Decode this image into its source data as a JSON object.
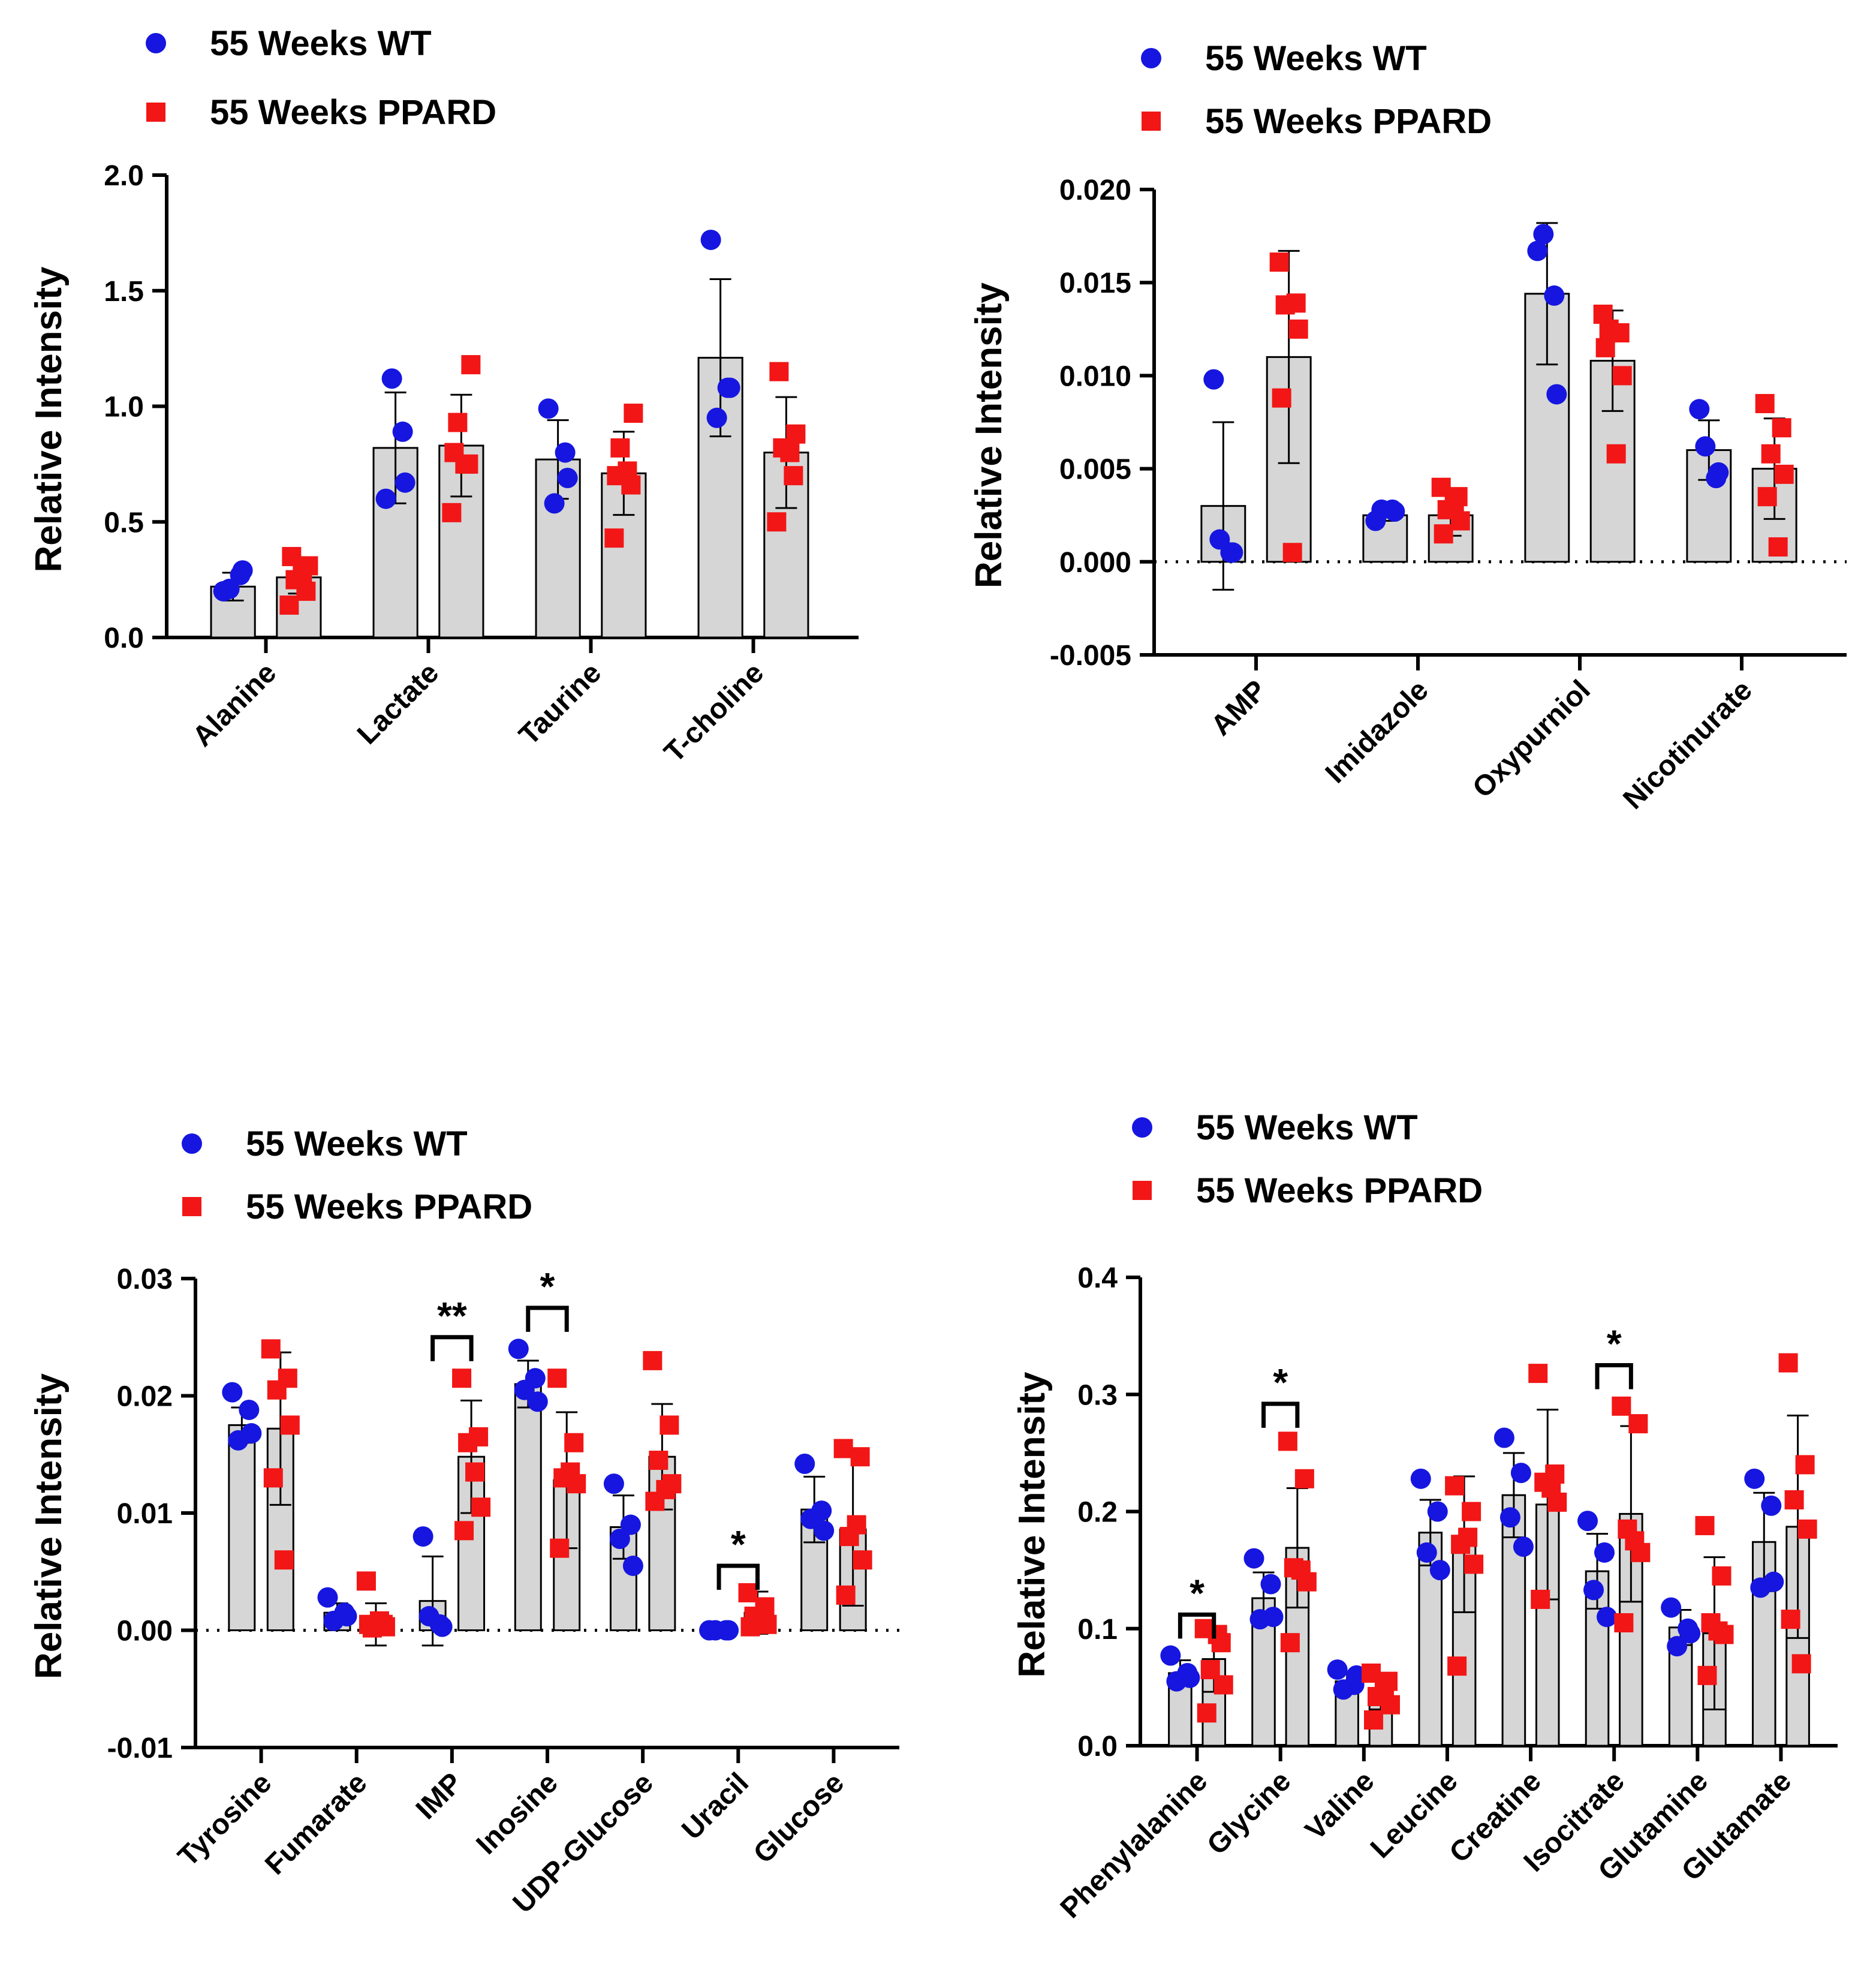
{
  "colors": {
    "wt": "#1616e0",
    "ppard": "#f21616",
    "bar_fill": "#d6d6d6",
    "axis": "#000000"
  },
  "chart_data": [
    {
      "type": "bar",
      "ylabel": "Relative Intensity",
      "ylim": [
        0,
        2.0
      ],
      "yticks": [
        "0.0",
        "0.5",
        "1.0",
        "1.5",
        "2.0"
      ],
      "zero_dotted": false,
      "legend": [
        "55 Weeks WT",
        "55 Weeks PPARD"
      ],
      "categories": [
        "Alanine",
        "Lactate",
        "Taurine",
        "T-choline"
      ],
      "series": [
        {
          "name": "55 Weeks WT",
          "values": [
            0.22,
            0.82,
            0.77,
            1.21
          ],
          "errors": [
            0.06,
            0.24,
            0.17,
            0.34
          ],
          "points": [
            [
              0.2,
              0.27,
              0.21,
              0.29
            ],
            [
              0.6,
              0.89,
              1.12,
              0.67
            ],
            [
              0.99,
              0.8,
              0.58,
              0.69
            ],
            [
              1.72,
              1.08,
              0.95,
              1.08
            ]
          ]
        },
        {
          "name": "55 Weeks PPARD",
          "values": [
            0.26,
            0.83,
            0.71,
            0.8
          ],
          "errors": [
            0.07,
            0.22,
            0.18,
            0.24
          ],
          "points": [
            [
              0.14,
              0.2,
              0.25,
              0.31,
              0.35,
              0.28
            ],
            [
              0.54,
              0.75,
              0.93,
              1.18,
              0.8,
              0.75
            ],
            [
              0.43,
              0.66,
              0.82,
              0.97,
              0.7,
              0.72
            ],
            [
              0.5,
              0.7,
              0.82,
              0.88,
              1.15,
              0.8
            ]
          ]
        }
      ],
      "significance": []
    },
    {
      "type": "bar",
      "ylabel": "Relative Intensity",
      "ylim": [
        -0.005,
        0.02
      ],
      "yticks": [
        "-0.005",
        "0.000",
        "0.005",
        "0.010",
        "0.015",
        "0.020"
      ],
      "zero_dotted": true,
      "legend": [
        "55 Weeks WT",
        "55 Weeks PPARD"
      ],
      "categories": [
        "AMP",
        "Imidazole",
        "Oxypurniol",
        "Nicotinurate"
      ],
      "series": [
        {
          "name": "55 Weeks WT",
          "values": [
            0.003,
            0.0025,
            0.0144,
            0.006
          ],
          "errors": [
            0.0045,
            0.0003,
            0.0038,
            0.0016
          ],
          "points": [
            [
              0.0098,
              0.0005,
              0.0012,
              0.0005
            ],
            [
              0.0022,
              0.0028,
              0.0028,
              0.0027
            ],
            [
              0.0167,
              0.0143,
              0.0176,
              0.009
            ],
            [
              0.0082,
              0.0045,
              0.0062,
              0.0048
            ]
          ]
        },
        {
          "name": "55 Weeks PPARD",
          "values": [
            0.011,
            0.0025,
            0.0108,
            0.005
          ],
          "errors": [
            0.0057,
            0.0011,
            0.0027,
            0.0027
          ],
          "points": [
            [
              0.0161,
              0.0139,
              0.0138,
              0.0125,
              0.0088,
              0.0005
            ],
            [
              0.004,
              0.0035,
              0.0028,
              0.0022,
              0.0015,
              0.003
            ],
            [
              0.0133,
              0.0123,
              0.0125,
              0.01,
              0.0115,
              0.0058
            ],
            [
              0.0085,
              0.0072,
              0.0058,
              0.0047,
              0.0035,
              0.0008
            ]
          ]
        }
      ],
      "significance": []
    },
    {
      "type": "bar",
      "ylabel": "Relative Intensity",
      "ylim": [
        -0.01,
        0.03
      ],
      "yticks": [
        "-0.01",
        "0.00",
        "0.01",
        "0.02",
        "0.03"
      ],
      "zero_dotted": true,
      "legend": [
        "55 Weeks WT",
        "55 Weeks PPARD"
      ],
      "categories": [
        "Tyrosine",
        "Fumarate",
        "IMP",
        "Inosine",
        "UDP-Glucose",
        "Uracil",
        "Glucose"
      ],
      "series": [
        {
          "name": "55 Weeks WT",
          "values": [
            0.0175,
            0.0015,
            0.0025,
            0.021,
            0.0088,
            0.0,
            0.0103
          ],
          "errors": [
            0.0015,
            0.0008,
            0.0038,
            0.002,
            0.0027,
            0.0001,
            0.0028
          ],
          "points": [
            [
              0.0203,
              0.0188,
              0.0162,
              0.0168
            ],
            [
              0.0028,
              0.0015,
              0.0008,
              0.0012
            ],
            [
              0.008,
              0.0005,
              0.0012,
              0.0003
            ],
            [
              0.024,
              0.0215,
              0.0205,
              0.0195
            ],
            [
              0.0125,
              0.009,
              0.0078,
              0.0055
            ],
            [
              0.0,
              0.0,
              0.0,
              0.0
            ],
            [
              0.0142,
              0.0102,
              0.0095,
              0.0085
            ]
          ]
        },
        {
          "name": "55 Weeks PPARD",
          "values": [
            0.0172,
            0.0005,
            0.0148,
            0.0128,
            0.0148,
            0.0015,
            0.0086
          ],
          "errors": [
            0.0065,
            0.0018,
            0.0048,
            0.0058,
            0.0045,
            0.0018,
            0.0065
          ],
          "points": [
            [
              0.024,
              0.0215,
              0.0205,
              0.0175,
              0.013,
              0.006
            ],
            [
              0.0042,
              0.0005,
              0.0002,
              0.0003,
              0.0005,
              0.0008
            ],
            [
              0.0215,
              0.0165,
              0.016,
              0.0105,
              0.0085,
              0.0135
            ],
            [
              0.0215,
              0.016,
              0.013,
              0.0125,
              0.007,
              0.0135
            ],
            [
              0.023,
              0.0175,
              0.0145,
              0.0125,
              0.011,
              0.012
            ],
            [
              0.0032,
              0.002,
              0.0012,
              0.0005,
              0.0003,
              0.0008
            ],
            [
              0.0155,
              0.0148,
              0.008,
              0.006,
              0.003,
              0.009
            ]
          ]
        }
      ],
      "significance": [
        {
          "category": "IMP",
          "label": "**",
          "bracket_y": 0.025
        },
        {
          "category": "Inosine",
          "label": "*",
          "bracket_y": 0.0275
        },
        {
          "category": "Uracil",
          "label": "*",
          "bracket_y": 0.0055
        }
      ]
    },
    {
      "type": "bar",
      "ylabel": "Relative Intensity",
      "ylim": [
        0,
        0.4
      ],
      "yticks": [
        "0.0",
        "0.1",
        "0.2",
        "0.3",
        "0.4"
      ],
      "zero_dotted": false,
      "legend": [
        "55 Weeks WT",
        "55 Weeks PPARD"
      ],
      "categories": [
        "Phenylalanine",
        "Glycine",
        "Valine",
        "Leucine",
        "Creatine",
        "Isocitrate",
        "Glutamine",
        "Glutamate"
      ],
      "series": [
        {
          "name": "55 Weeks WT",
          "values": [
            0.062,
            0.126,
            0.055,
            0.182,
            0.214,
            0.149,
            0.101,
            0.174
          ],
          "errors": [
            0.011,
            0.022,
            0.008,
            0.028,
            0.036,
            0.032,
            0.015,
            0.042
          ],
          "points": [
            [
              0.077,
              0.062,
              0.055,
              0.058
            ],
            [
              0.16,
              0.138,
              0.108,
              0.11
            ],
            [
              0.065,
              0.052,
              0.048,
              0.06
            ],
            [
              0.228,
              0.2,
              0.165,
              0.15
            ],
            [
              0.263,
              0.233,
              0.195,
              0.17
            ],
            [
              0.192,
              0.165,
              0.133,
              0.11
            ],
            [
              0.118,
              0.1,
              0.085,
              0.096
            ],
            [
              0.228,
              0.205,
              0.135,
              0.14
            ]
          ]
        },
        {
          "name": "55 Weeks PPARD",
          "values": [
            0.074,
            0.169,
            0.046,
            0.172,
            0.206,
            0.198,
            0.096,
            0.187
          ],
          "errors": [
            0.028,
            0.051,
            0.015,
            0.058,
            0.081,
            0.075,
            0.065,
            0.095
          ],
          "points": [
            [
              0.1,
              0.088,
              0.065,
              0.052,
              0.028,
              0.095
            ],
            [
              0.26,
              0.228,
              0.152,
              0.14,
              0.088,
              0.15
            ],
            [
              0.062,
              0.055,
              0.042,
              0.035,
              0.022,
              0.048
            ],
            [
              0.222,
              0.2,
              0.172,
              0.155,
              0.068,
              0.178
            ],
            [
              0.318,
              0.232,
              0.225,
              0.208,
              0.125,
              0.22
            ],
            [
              0.29,
              0.275,
              0.185,
              0.165,
              0.105,
              0.175
            ],
            [
              0.188,
              0.145,
              0.105,
              0.095,
              0.06,
              0.098
            ],
            [
              0.327,
              0.24,
              0.21,
              0.185,
              0.108,
              0.07
            ]
          ]
        }
      ],
      "significance": [
        {
          "category": "Phenylalanine",
          "label": "*",
          "bracket_y": 0.112
        },
        {
          "category": "Glycine",
          "label": "*",
          "bracket_y": 0.292
        },
        {
          "category": "Isocitrate",
          "label": "*",
          "bracket_y": 0.325
        }
      ]
    }
  ]
}
